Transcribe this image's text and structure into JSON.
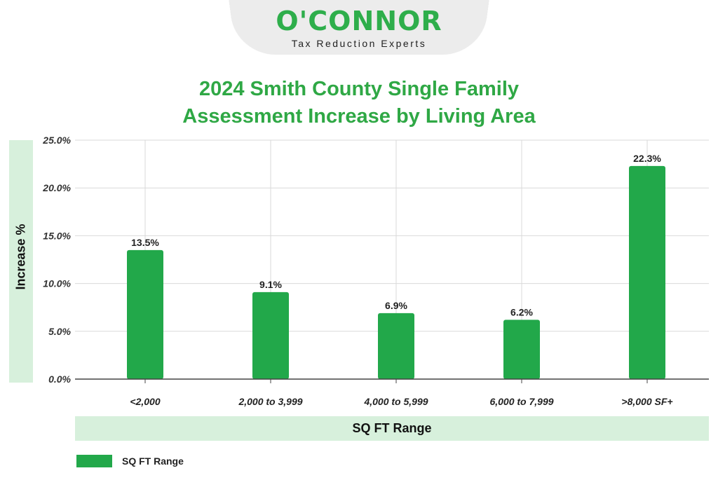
{
  "logo": {
    "brand": "O'CONNOR",
    "tagline": "Tax Reduction Experts"
  },
  "title_line1": "2024 Smith County Single Family",
  "title_line2": "Assessment Increase by Living Area",
  "colors": {
    "bar": "#22a84a",
    "title": "#2fa845",
    "band": "#d7f0dc",
    "grid": "#d9d9d9"
  },
  "chart_data": {
    "type": "bar",
    "title": "2024 Smith County Single Family Assessment Increase by Living Area",
    "xlabel": "SQ FT Range",
    "ylabel": "Increase %",
    "categories": [
      "<2,000",
      "2,000 to 3,999",
      "4,000 to 5,999",
      "6,000 to 7,999",
      ">8,000 SF+"
    ],
    "series": [
      {
        "name": "SQ FT Range",
        "values": [
          13.5,
          9.1,
          6.9,
          6.2,
          22.3
        ]
      }
    ],
    "data_labels": [
      "13.5%",
      "9.1%",
      "6.9%",
      "6.2%",
      "22.3%"
    ],
    "ylim": [
      0,
      25
    ],
    "y_ticks": [
      "0.0%",
      "5.0%",
      "10.0%",
      "15.0%",
      "20.0%",
      "25.0%"
    ],
    "grid": true,
    "legend": "bottom-left"
  }
}
